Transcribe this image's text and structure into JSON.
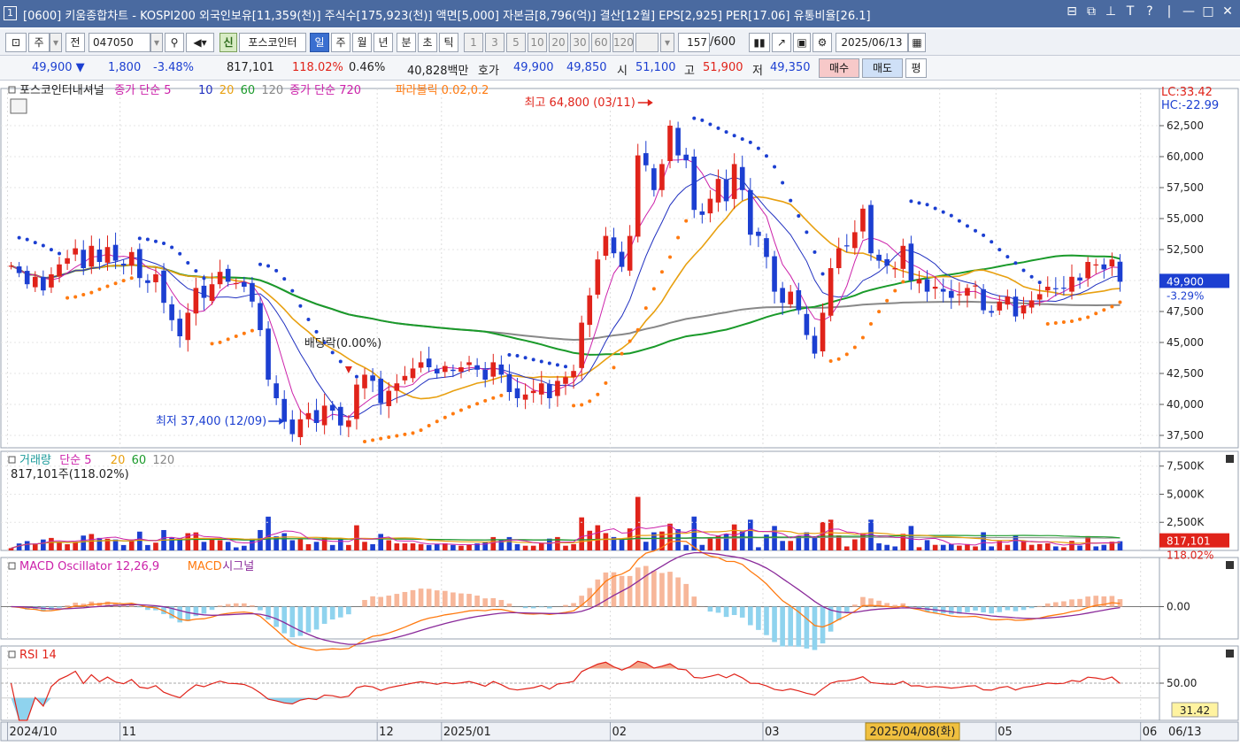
{
  "window": {
    "badge": "1",
    "title": "[0600] 키움종합차트 - KOSPI200 외국인보유[11,359(천)] 주식수[175,923(천)] 액면[5,000] 자본금[8,796(억)] 결산[12월] EPS[2,925] PER[17.06] 유통비율[26.1]",
    "controls": [
      "⊟",
      "⧉",
      "⊥",
      "T",
      "?",
      "|",
      "—",
      "□",
      "✕"
    ]
  },
  "toolbar": {
    "market": "주",
    "prev_label": "전",
    "code": "047050",
    "new_label": "신",
    "stock_name": "포스코인터",
    "periods": [
      "일",
      "주",
      "월",
      "년",
      "분",
      "초",
      "틱"
    ],
    "active_period": "일",
    "intervals": [
      "1",
      "3",
      "5",
      "10",
      "20",
      "30",
      "60",
      "120"
    ],
    "count": "157",
    "count_total": "/600",
    "date": "2025/06/13"
  },
  "quote": {
    "price": "49,900 ▼",
    "change": "1,800",
    "change_pct": "-3.48%",
    "volume": "817,101",
    "volume_ratio": "118.02%",
    "turnover": "0.46%",
    "amount": "40,828백만",
    "hoga_label": "호가",
    "ask": "49,900",
    "bid": "49,850",
    "open_label": "시",
    "open": "51,100",
    "high_label": "고",
    "high": "51,900",
    "low_label": "저",
    "low": "49,350",
    "buy_label": "매수",
    "sell_label": "매도",
    "flat_label": "평"
  },
  "price_panel": {
    "legend": [
      {
        "text": "포스코인터내셔널",
        "color": "#222222"
      },
      {
        "text": "종가 단순 5",
        "color": "#cc22aa"
      },
      {
        "text": "10",
        "color": "#2030c0"
      },
      {
        "text": "20",
        "color": "#e8a010"
      },
      {
        "text": "60",
        "color": "#1a9a2a"
      },
      {
        "text": "120",
        "color": "#888888"
      },
      {
        "text": "종가 단순 720",
        "color": "#cc22aa"
      },
      {
        "text": "파라볼릭 0.02,0.2",
        "color": "#ff7a10"
      }
    ],
    "lc": "LC:33.42",
    "hc": "HC:-22.99",
    "y_ticks": [
      "62,500",
      "60,000",
      "57,500",
      "55,000",
      "52,500",
      "50,000",
      "47,500",
      "45,000",
      "42,500",
      "40,000",
      "37,500"
    ],
    "current_price": "49,900",
    "current_pct": "-3.29%",
    "high_annotation": "최고 64,800 (03/11)",
    "low_annotation": "최저 37,400 (12/09)",
    "dividend_annotation": "배당락(0.00%)"
  },
  "volume_panel": {
    "legend": [
      {
        "text": "거래량",
        "color": "#1a9a9a"
      },
      {
        "text": "단순 5",
        "color": "#cc22aa"
      },
      {
        "text": "20",
        "color": "#e8a010"
      },
      {
        "text": "60",
        "color": "#1a9a2a"
      },
      {
        "text": "120",
        "color": "#888888"
      }
    ],
    "sub": "817,101주(118.02%)",
    "y_ticks": [
      "7,500K",
      "5,000K",
      "2,500K"
    ],
    "current": "817,101",
    "current_pct": "118.02%"
  },
  "macd_panel": {
    "legend": [
      {
        "text": "MACD Oscillator 12,26,9",
        "color": "#cc22aa"
      },
      {
        "text": "MACD",
        "color": "#ff7a10"
      },
      {
        "text": "시그널",
        "color": "#8a2a9a"
      }
    ],
    "zero_label": "0.00"
  },
  "rsi_panel": {
    "legend": [
      {
        "text": "RSI 14",
        "color": "#e0231a"
      }
    ],
    "level_label": "50.00",
    "current": "31.42"
  },
  "x_axis": {
    "labels": [
      "2024/10",
      "11",
      "12",
      "2025/01",
      "02",
      "03",
      "05",
      "06"
    ],
    "cursor": "2025/04/08(화)",
    "right": "06/13"
  },
  "chart_data": {
    "type": "candlestick",
    "y_unit": "KRW",
    "price_range": [
      36500,
      65500
    ],
    "volume_range": [
      0,
      8500000
    ],
    "macd_range": [
      -2300,
      3500
    ],
    "rsi_range": [
      0,
      100
    ],
    "series": [
      {
        "name": "종가 단순 5",
        "color": "#cc22aa"
      },
      {
        "name": "10",
        "color": "#2030c0"
      },
      {
        "name": "20",
        "color": "#e8a010"
      },
      {
        "name": "60",
        "color": "#1a9a2a"
      },
      {
        "name": "120",
        "color": "#888888"
      },
      {
        "name": "파라볼릭 0.02,0.2",
        "color": "#ff7a10"
      }
    ],
    "closes": [
      51200,
      50600,
      49700,
      50300,
      49200,
      50500,
      51300,
      51800,
      52600,
      51000,
      52800,
      51500,
      52700,
      51600,
      51200,
      52300,
      50200,
      49800,
      50500,
      48200,
      46800,
      45500,
      47400,
      49400,
      48600,
      49700,
      50700,
      49900,
      49800,
      49500,
      48300,
      46000,
      42000,
      40500,
      38600,
      37600,
      38800,
      39300,
      38500,
      39900,
      39500,
      38300,
      38700,
      41600,
      42400,
      41900,
      40100,
      41100,
      41700,
      42300,
      42900,
      43400,
      43000,
      42500,
      43100,
      42700,
      43000,
      43400,
      42800,
      42000,
      43400,
      42400,
      41000,
      40500,
      40800,
      41100,
      41700,
      40500,
      41900,
      42200,
      42700,
      46600,
      48800,
      51700,
      53600,
      52200,
      51100,
      53600,
      60100,
      59300,
      57300,
      59400,
      62500,
      60100,
      59700,
      55700,
      55300,
      56600,
      58200,
      56400,
      59400,
      57300,
      53700,
      53600,
      51900,
      49100,
      48200,
      49100,
      47600,
      45600,
      44100,
      47400,
      51000,
      52600,
      52800,
      53900,
      55800,
      52200,
      51600,
      51200,
      51000,
      52800,
      50000,
      50100,
      49100,
      49500,
      49100,
      48600,
      48900,
      49400,
      49600,
      47600,
      47400,
      48300,
      48700,
      47100,
      48000,
      48400,
      48900,
      49500,
      49300,
      49400,
      50300,
      50000,
      51500,
      51300,
      50900,
      51700,
      49900
    ]
  }
}
